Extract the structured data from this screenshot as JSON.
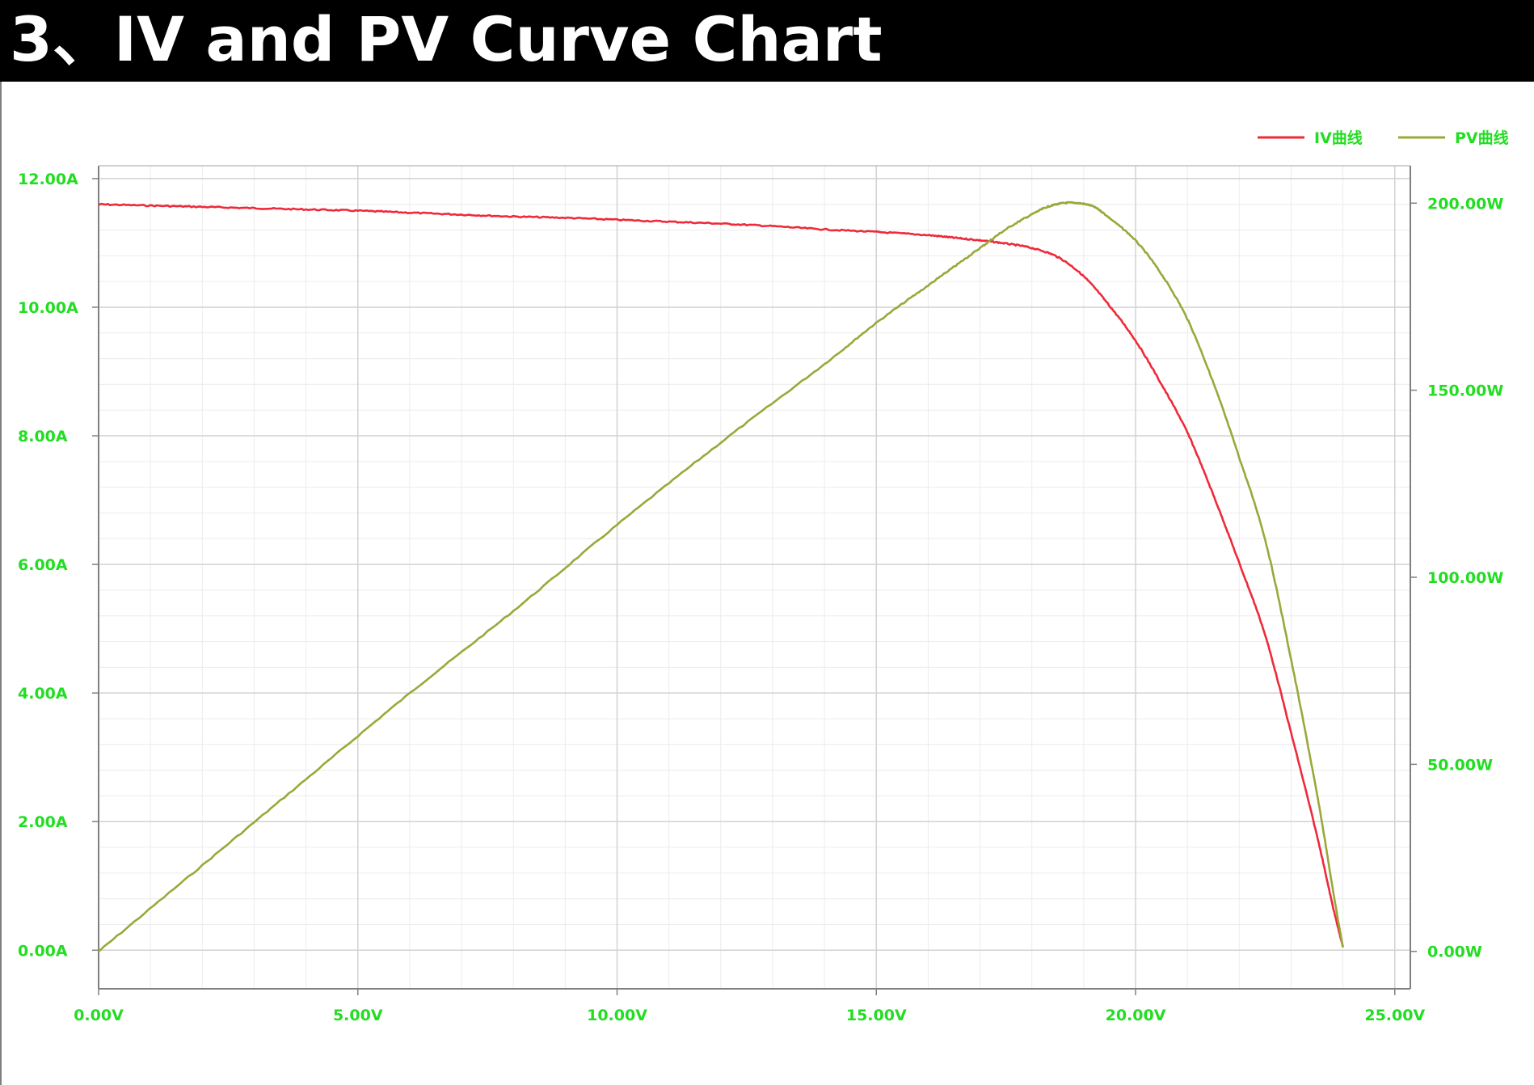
{
  "page": {
    "title": "3、IV and PV Curve Chart"
  },
  "chart_data": {
    "type": "line",
    "title": "",
    "xlabel": "",
    "x_ticks": [
      "0.00V",
      "5.00V",
      "10.00V",
      "15.00V",
      "20.00V",
      "25.00V"
    ],
    "y_left_ticks": [
      "0.00A",
      "2.00A",
      "4.00A",
      "6.00A",
      "8.00A",
      "10.00A",
      "12.00A"
    ],
    "y_right_ticks": [
      "0.00W",
      "50.00W",
      "100.00W",
      "150.00W",
      "200.00W"
    ],
    "xlim": [
      0,
      25.3
    ],
    "ylim_left": [
      -0.6,
      12.2
    ],
    "ylim_right": [
      -10,
      210
    ],
    "grid": true,
    "legend_position": "top-right",
    "colors": {
      "tick_text": "#22dd22",
      "iv": "#ee2a3a",
      "pv": "#9aa83a",
      "grid_major": "#d2d2d2",
      "grid_minor": "#ececec",
      "axis": "#808080"
    },
    "series": [
      {
        "name": "IV曲线",
        "axis": "left",
        "x": [
          0,
          1,
          2,
          3,
          4,
          5,
          6,
          7,
          8,
          9,
          10,
          11,
          12,
          13,
          14,
          15,
          16,
          16.5,
          17,
          17.5,
          18,
          18.5,
          19,
          19.5,
          20,
          20.5,
          21,
          21.5,
          22,
          22.5,
          23,
          23.5,
          23.8,
          24.0
        ],
        "y": [
          11.6,
          11.58,
          11.56,
          11.54,
          11.52,
          11.5,
          11.47,
          11.44,
          11.41,
          11.39,
          11.36,
          11.33,
          11.3,
          11.26,
          11.21,
          11.17,
          11.12,
          11.08,
          11.04,
          10.99,
          10.92,
          10.78,
          10.48,
          10.02,
          9.48,
          8.8,
          8.05,
          7.08,
          6.02,
          4.9,
          3.38,
          1.78,
          0.7,
          0.05
        ]
      },
      {
        "name": "PV曲线",
        "axis": "right",
        "x": [
          0,
          2,
          4,
          6,
          8,
          10,
          12,
          14,
          15,
          16,
          16.5,
          17,
          17.5,
          18,
          18.3,
          18.6,
          18.9,
          19.2,
          19.5,
          20,
          20.5,
          21,
          21.5,
          22,
          22.5,
          23,
          23.5,
          23.8,
          24.0
        ],
        "y": [
          0,
          23,
          46,
          69,
          91,
          114,
          136,
          157,
          168,
          178,
          183,
          188,
          193,
          197,
          199,
          200,
          200,
          199,
          196,
          190,
          181,
          169,
          152,
          132,
          110,
          78,
          42,
          17,
          1
        ]
      }
    ]
  }
}
